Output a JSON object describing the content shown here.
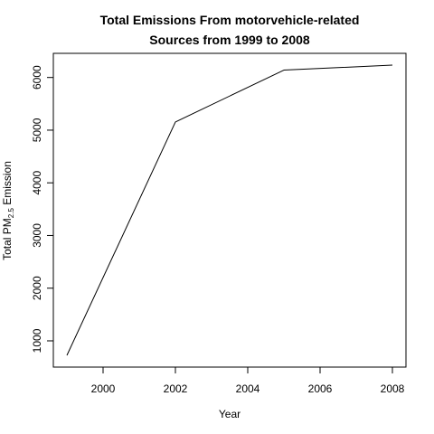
{
  "chart_data": {
    "type": "line",
    "title_line1": "Total Emissions From motorvehicle-related",
    "title_line2": "Sources from 1999 to 2008",
    "xlabel": "Year",
    "ylabel_prefix": "Total PM",
    "ylabel_subscript": "2.5",
    "ylabel_suffix": " Emission",
    "x": [
      1999,
      2002,
      2005,
      2008
    ],
    "series": [
      {
        "values": [
          725,
          5155,
          6140,
          6235
        ]
      }
    ],
    "xlim": [
      1999,
      2008
    ],
    "ylim": [
      725,
      6235
    ],
    "x_ticks": [
      2000,
      2002,
      2004,
      2006,
      2008
    ],
    "y_ticks": [
      1000,
      2000,
      3000,
      4000,
      5000,
      6000
    ],
    "grid": false,
    "line_color": "#000000"
  }
}
